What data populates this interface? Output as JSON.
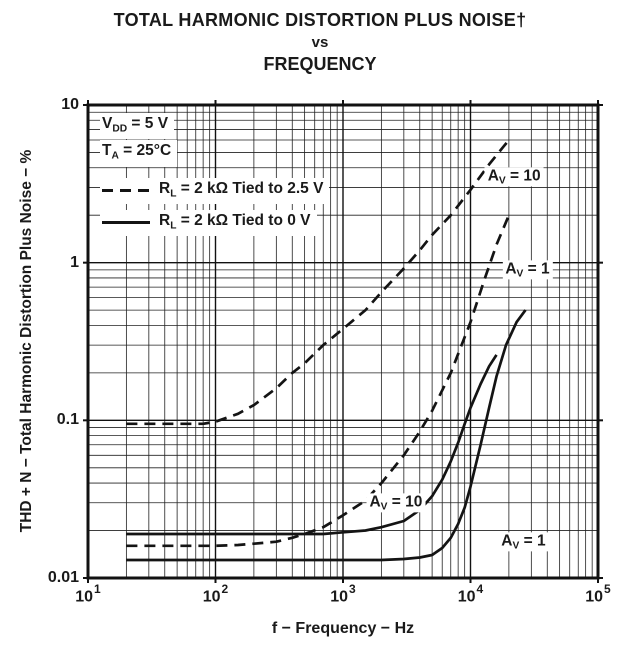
{
  "page": {
    "background": "#ffffff",
    "text_color": "#1a1a1a",
    "line_color": "#141414"
  },
  "title": {
    "line1": "TOTAL HARMONIC DISTORTION PLUS NOISE†",
    "line2": "vs",
    "line3": "FREQUENCY"
  },
  "chart_data": {
    "type": "line",
    "title": "TOTAL HARMONIC DISTORTION PLUS NOISE vs FREQUENCY",
    "x_axis": {
      "label": "f − Frequency − Hz",
      "scale": "log",
      "min": 10,
      "max": 100000,
      "ticks": [
        {
          "v": 10,
          "base": "10",
          "exp": "1"
        },
        {
          "v": 100,
          "base": "10",
          "exp": "2"
        },
        {
          "v": 1000,
          "base": "10",
          "exp": "3"
        },
        {
          "v": 10000,
          "base": "10",
          "exp": "4"
        },
        {
          "v": 100000,
          "base": "10",
          "exp": "5"
        }
      ]
    },
    "y_axis": {
      "label": "THD + N − Total Harmonic Distortion Plus Noise − %",
      "scale": "log",
      "min": 0.01,
      "max": 10,
      "ticks": [
        {
          "v": 10,
          "label": "10"
        },
        {
          "v": 1,
          "label": "1"
        },
        {
          "v": 0.1,
          "label": "0.1"
        },
        {
          "v": 0.01,
          "label": "0.01"
        }
      ]
    },
    "grid": {
      "log_minor_lines": true,
      "color": "#1a1a1a",
      "on": true
    },
    "conditions": [
      {
        "pre": "V",
        "sub": "DD",
        "post": " = 5 V"
      },
      {
        "pre": "T",
        "sub": "A",
        "post": " = 25°C"
      }
    ],
    "legend": [
      {
        "style": "dashed",
        "pre": "R",
        "sub": "L",
        "post": " = 2 kΩ Tied to 2.5 V"
      },
      {
        "style": "solid",
        "pre": "R",
        "sub": "L",
        "post": " = 2 kΩ Tied to 0 V"
      }
    ],
    "series": [
      {
        "key": "dashed-av10",
        "label": "RL = 2 kΩ Tied to 2.5 V, AV = 10",
        "style": "dashed",
        "points": [
          [
            20,
            0.095
          ],
          [
            40,
            0.095
          ],
          [
            60,
            0.095
          ],
          [
            80,
            0.095
          ],
          [
            100,
            0.098
          ],
          [
            150,
            0.11
          ],
          [
            200,
            0.125
          ],
          [
            300,
            0.16
          ],
          [
            400,
            0.2
          ],
          [
            500,
            0.23
          ],
          [
            700,
            0.3
          ],
          [
            1000,
            0.38
          ],
          [
            1500,
            0.5
          ],
          [
            2000,
            0.65
          ],
          [
            3000,
            0.92
          ],
          [
            4000,
            1.2
          ],
          [
            5000,
            1.5
          ],
          [
            7000,
            2.0
          ],
          [
            10000,
            2.9
          ],
          [
            14000,
            4.2
          ],
          [
            18000,
            5.4
          ],
          [
            20000,
            6.0
          ]
        ]
      },
      {
        "key": "dashed-av1",
        "label": "RL = 2 kΩ Tied to 2.5 V, AV = 1",
        "style": "dashed",
        "points": [
          [
            20,
            0.016
          ],
          [
            50,
            0.016
          ],
          [
            100,
            0.016
          ],
          [
            150,
            0.0162
          ],
          [
            200,
            0.0165
          ],
          [
            300,
            0.017
          ],
          [
            400,
            0.018
          ],
          [
            500,
            0.019
          ],
          [
            700,
            0.021
          ],
          [
            1000,
            0.025
          ],
          [
            1500,
            0.031
          ],
          [
            2000,
            0.04
          ],
          [
            3000,
            0.06
          ],
          [
            4000,
            0.085
          ],
          [
            5000,
            0.115
          ],
          [
            7000,
            0.2
          ],
          [
            10000,
            0.42
          ],
          [
            13000,
            0.8
          ],
          [
            16000,
            1.3
          ],
          [
            20000,
            2.0
          ]
        ]
      },
      {
        "key": "solid-av10",
        "label": "RL = 2 kΩ Tied to 0 V, AV = 10",
        "style": "solid",
        "points": [
          [
            20,
            0.019
          ],
          [
            100,
            0.019
          ],
          [
            300,
            0.019
          ],
          [
            700,
            0.019
          ],
          [
            1000,
            0.0195
          ],
          [
            1500,
            0.02
          ],
          [
            2000,
            0.021
          ],
          [
            3000,
            0.023
          ],
          [
            4000,
            0.027
          ],
          [
            5000,
            0.033
          ],
          [
            6000,
            0.042
          ],
          [
            7000,
            0.055
          ],
          [
            8000,
            0.072
          ],
          [
            9000,
            0.095
          ],
          [
            10000,
            0.12
          ],
          [
            12000,
            0.17
          ],
          [
            14000,
            0.22
          ],
          [
            16000,
            0.26
          ]
        ]
      },
      {
        "key": "solid-av1",
        "label": "RL = 2 kΩ Tied to 0 V, AV = 1",
        "style": "solid",
        "points": [
          [
            20,
            0.013
          ],
          [
            100,
            0.013
          ],
          [
            500,
            0.013
          ],
          [
            1000,
            0.013
          ],
          [
            2000,
            0.013
          ],
          [
            3000,
            0.0132
          ],
          [
            4000,
            0.0135
          ],
          [
            5000,
            0.014
          ],
          [
            6000,
            0.0155
          ],
          [
            7000,
            0.018
          ],
          [
            8000,
            0.022
          ],
          [
            9000,
            0.028
          ],
          [
            10000,
            0.038
          ],
          [
            12000,
            0.07
          ],
          [
            14000,
            0.12
          ],
          [
            16000,
            0.19
          ],
          [
            19000,
            0.3
          ],
          [
            23000,
            0.42
          ],
          [
            27000,
            0.5
          ]
        ]
      }
    ],
    "annotations": [
      {
        "pre": "A",
        "sub": "V",
        "post": " = 10",
        "x": 22000,
        "y": 3.5
      },
      {
        "pre": "A",
        "sub": "V",
        "post": " = 1",
        "x": 28000,
        "y": 0.9
      },
      {
        "pre": "A",
        "sub": "V",
        "post": " = 10",
        "x": 2600,
        "y": 0.03
      },
      {
        "pre": "A",
        "sub": "V",
        "post": " = 1",
        "x": 26000,
        "y": 0.017
      }
    ]
  }
}
